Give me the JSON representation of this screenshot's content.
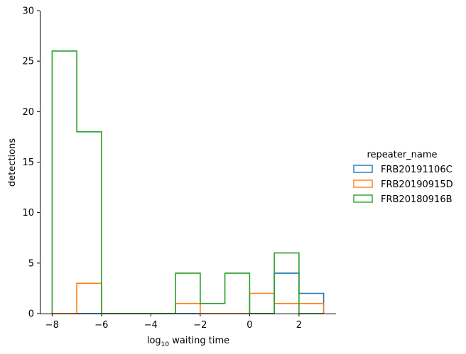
{
  "chart_data": {
    "type": "histogram",
    "title": "",
    "xlabel_main": "log",
    "xlabel_sub": "10",
    "xlabel_rest": " waiting time",
    "ylabel": "detections",
    "xlim": [
      -8.5,
      3.5
    ],
    "ylim": [
      0,
      30
    ],
    "xticks": [
      -8,
      -6,
      -4,
      -2,
      0,
      2
    ],
    "xtick_labels": [
      "−8",
      "−6",
      "−4",
      "−2",
      "0",
      "2"
    ],
    "yticks": [
      0,
      5,
      10,
      15,
      20,
      25,
      30
    ],
    "ytick_labels": [
      "0",
      "5",
      "10",
      "15",
      "20",
      "25",
      "30"
    ],
    "bin_edges": [
      -8,
      -7,
      -6,
      -5,
      -4,
      -3,
      -2,
      -1,
      0,
      1,
      2,
      3
    ],
    "grid": false,
    "legend": {
      "title": "repeater_name",
      "placement": "right"
    },
    "series": [
      {
        "name": "FRB20191106C",
        "color": "#1f77b4",
        "counts": [
          0,
          0,
          0,
          0,
          0,
          0,
          0,
          0,
          0,
          4,
          2
        ]
      },
      {
        "name": "FRB20190915D",
        "color": "#ff7f0e",
        "counts": [
          0,
          3,
          0,
          0,
          0,
          1,
          0,
          0,
          2,
          1,
          1
        ]
      },
      {
        "name": "FRB20180916B",
        "color": "#2ca02c",
        "counts": [
          26,
          18,
          0,
          0,
          0,
          4,
          1,
          4,
          0,
          6,
          0
        ]
      }
    ]
  }
}
